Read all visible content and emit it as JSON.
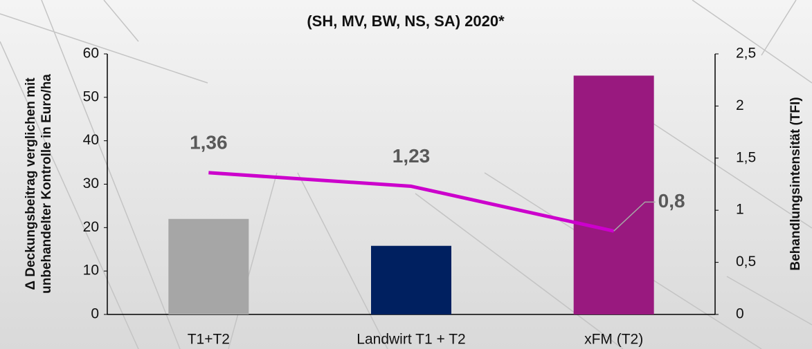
{
  "chart_data": {
    "type": "bar_line",
    "title": "(SH, MV, BW, NS, SA) 2020*",
    "ylabel": [
      "Δ Deckungsbeitrag verglichen mit",
      "unbehandelter Kontrolle in Euro/ha"
    ],
    "y2label": "Behandlungsintensität (TFI)",
    "categories": [
      "T1+T2",
      "Landwirt T1 + T2",
      "xFM (T2)"
    ],
    "series": [
      {
        "type": "bar",
        "colors": [
          "#a6a6a6",
          "#002060",
          "#99197f"
        ],
        "values": [
          22,
          15.8,
          55
        ]
      },
      {
        "type": "line",
        "axis": "y2",
        "color": "#cc00cc",
        "values": [
          1.36,
          1.23,
          0.8
        ],
        "value_labels": [
          "1,36",
          "1,23",
          "0,8"
        ]
      }
    ],
    "ylim": [
      0,
      60
    ],
    "yticks": [
      0,
      10,
      20,
      30,
      40,
      50,
      60
    ],
    "y2lim": [
      0,
      2.5
    ],
    "y2ticks": [
      0,
      {
        "value": 0.5,
        "label": "0,5"
      },
      1,
      {
        "value": 1.5,
        "label": "1,5"
      },
      2,
      {
        "value": 2.5,
        "label": "2,5"
      }
    ]
  }
}
